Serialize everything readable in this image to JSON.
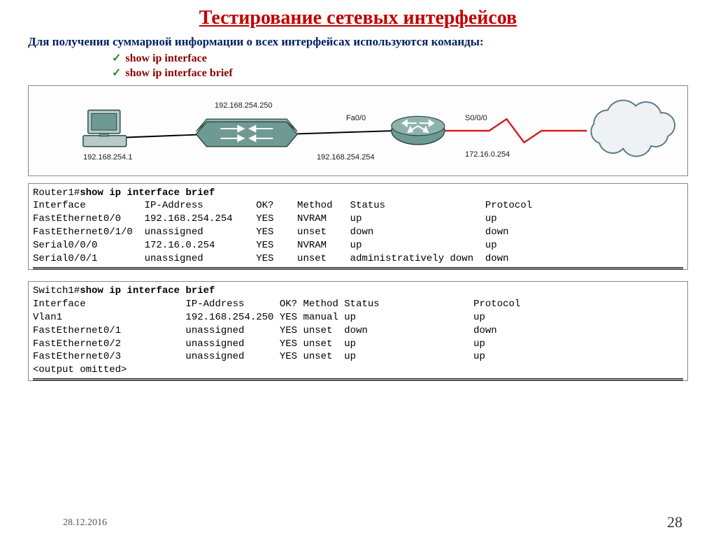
{
  "title": "Тестирование  сетевых интерфейсов",
  "intro": "Для получения суммарной информации о всех интерфейсах используются команды:",
  "commands": [
    "show ip interface",
    "show ip interface brief"
  ],
  "diagram": {
    "pc_label": "192.168.254.1",
    "switch_label": "192.168.254.250",
    "router_below": "192.168.254.254",
    "router_port_left": "Fa0/0",
    "router_port_right": "S0/0/0",
    "wan_ip": "172.16.0.254",
    "colors": {
      "device_fill": "#6f9a93",
      "device_stroke": "#2b4a46",
      "cloud_fill": "#eef2f5",
      "cloud_stroke": "#5a7a88",
      "serial_line": "#d02020",
      "eth_line": "#000000",
      "bg": "#fdfdfd"
    }
  },
  "term1": {
    "prompt": "Router1#",
    "command": "show ip interface brief",
    "header": [
      "Interface",
      "IP-Address",
      "OK?",
      "Method",
      "Status",
      "Protocol"
    ],
    "col_starts": [
      0,
      19,
      38,
      45,
      54,
      77
    ],
    "rows": [
      [
        "FastEthernet0/0",
        "192.168.254.254",
        "YES",
        "NVRAM",
        "up",
        "up"
      ],
      [
        "FastEthernet0/1/0",
        "unassigned",
        "YES",
        "unset",
        "down",
        "down"
      ],
      [
        "Serial0/0/0",
        "172.16.0.254",
        "YES",
        "NVRAM",
        "up",
        "up"
      ],
      [
        "Serial0/0/1",
        "unassigned",
        "YES",
        "unset",
        "administratively down",
        "down"
      ]
    ]
  },
  "term2": {
    "prompt": "Switch1#",
    "command": "show ip interface brief",
    "header": [
      "Interface",
      "IP-Address",
      "OK?",
      "Method",
      "Status",
      "Protocol"
    ],
    "col_starts": [
      0,
      26,
      42,
      46,
      53,
      75
    ],
    "rows": [
      [
        "Vlan1",
        "192.168.254.250",
        "YES",
        "manual",
        "up",
        "up"
      ],
      [
        "FastEthernet0/1",
        "unassigned",
        "YES",
        "unset",
        "down",
        "down"
      ],
      [
        "FastEthernet0/2",
        "unassigned",
        "YES",
        "unset",
        "up",
        "up"
      ],
      [
        "FastEthernet0/3",
        "unassigned",
        "YES",
        "unset",
        "up",
        "up"
      ]
    ],
    "footer": "<output omitted>"
  },
  "date": "28.12.2016",
  "page": "28"
}
